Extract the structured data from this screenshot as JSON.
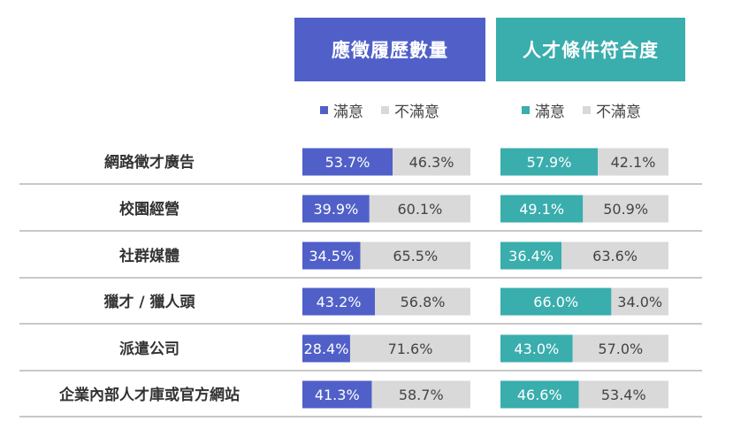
{
  "chart_data": {
    "type": "bar",
    "stacked": true,
    "orientation": "horizontal",
    "groups": [
      {
        "title": "應徵履歷數量",
        "color": "#5060c8"
      },
      {
        "title": "人才條件符合度",
        "color": "#3aadad"
      }
    ],
    "legend": {
      "satisfied": "滿意",
      "unsatisfied": "不滿意",
      "unsatisfied_color": "#d9d9d9"
    },
    "categories": [
      "網路徵才廣告",
      "校園經營",
      "社群媒體",
      "獵才 / 獵人頭",
      "派遣公司",
      "企業內部人才庫或官方網站"
    ],
    "series": [
      {
        "group": 0,
        "satisfied": [
          53.7,
          39.9,
          34.5,
          43.2,
          28.4,
          41.3
        ],
        "unsatisfied": [
          46.3,
          60.1,
          65.5,
          56.8,
          71.6,
          58.7
        ]
      },
      {
        "group": 1,
        "satisfied": [
          57.9,
          49.1,
          36.4,
          66.0,
          43.0,
          46.6
        ],
        "unsatisfied": [
          42.1,
          50.9,
          63.6,
          34.0,
          57.0,
          53.4
        ]
      }
    ],
    "value_format": "%",
    "grid": false
  }
}
